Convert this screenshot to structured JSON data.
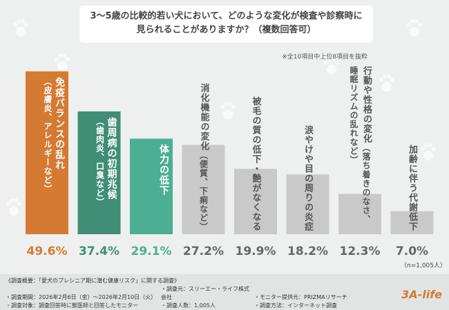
{
  "chart_data": {
    "type": "bar",
    "title": "3～5歳の比較的若い犬において、どのような変化が検査や診察時に見られることがありますか？（複数回答可）",
    "note": "※全10項目中上位8項目を抜粋",
    "sample": "（n=1,005人）",
    "categories": [
      "免疫バランスの乱れ",
      "歯周病の初期兆候",
      "体力の低下",
      "消化機能の変化",
      "被毛の質の低下・艶がなくなる",
      "涙やけや目の周りの炎症",
      "行動や性格の変化",
      "加齢に伴う代謝低下"
    ],
    "category_notes": [
      "（皮膚炎、アレルギーなど）",
      "（歯肉炎、口臭など）",
      null,
      "（便質、下痢など）",
      null,
      null,
      "（落ち着きのなさ、睡眠リズムの乱れなど）",
      null
    ],
    "values": [
      49.6,
      37.4,
      29.1,
      27.2,
      19.9,
      18.2,
      12.3,
      7.0
    ],
    "value_labels": [
      "49.6%",
      "37.4%",
      "29.1%",
      "27.2%",
      "19.9%",
      "18.2%",
      "12.3%",
      "7.0%"
    ],
    "colors": [
      "#d57a32",
      "#3f8e75",
      "#4cae92",
      "#c9c9c9",
      "#c9c9c9",
      "#c9c9c9",
      "#c9c9c9",
      "#c9c9c9"
    ],
    "ylim": [
      0,
      60
    ]
  },
  "footer": {
    "heading": "《調査概要：「愛犬のプレシニア期に潜む健康リスク」に関する調査》",
    "rows": [
      [
        "・調査期間：2026年2月6日（金）～2026年2月10日（火）",
        "・調査元：スリーエー・ライフ株式会社",
        "・モニター提供元：PRIZMAリサーチ"
      ],
      [
        "・調査対象：調査回答時に獣医師と回答したモニター",
        "・調査人数：1,005人",
        "・調査方法：インターネット調査"
      ]
    ],
    "logo": "3A-life"
  }
}
